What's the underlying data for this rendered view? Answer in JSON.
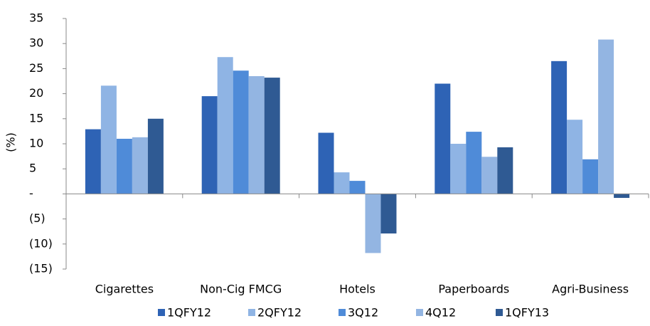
{
  "chart_data": {
    "type": "bar",
    "y_label": "(%)",
    "categories": [
      "Cigarettes",
      "Non-Cig FMCG",
      "Hotels",
      "Paperboards",
      "Agri-Business"
    ],
    "series": [
      {
        "name": "1QFY12",
        "color": "#2e63b5",
        "values": [
          12.9,
          19.5,
          12.2,
          22.0,
          26.5
        ]
      },
      {
        "name": "2QFY12",
        "color": "#8fb4e4",
        "values": [
          21.6,
          27.3,
          4.3,
          10.0,
          14.8
        ]
      },
      {
        "name": "3Q12",
        "color": "#4f8bd8",
        "values": [
          11.0,
          24.6,
          2.6,
          12.4,
          6.9
        ]
      },
      {
        "name": "4Q12",
        "color": "#93b5e2",
        "values": [
          11.3,
          23.5,
          -11.8,
          7.4,
          30.8
        ]
      },
      {
        "name": "1QFY13",
        "color": "#2f5a93",
        "values": [
          15.0,
          23.2,
          -7.9,
          9.3,
          -0.8
        ]
      }
    ],
    "ylim": [
      -15,
      35
    ],
    "yticks": [
      {
        "value": -15,
        "label": "(15)"
      },
      {
        "value": -10,
        "label": "(10)"
      },
      {
        "value": -5,
        "label": "(5)"
      },
      {
        "value": 0,
        "label": "-"
      },
      5,
      10,
      15,
      20,
      25,
      30,
      35
    ],
    "grid": false
  }
}
